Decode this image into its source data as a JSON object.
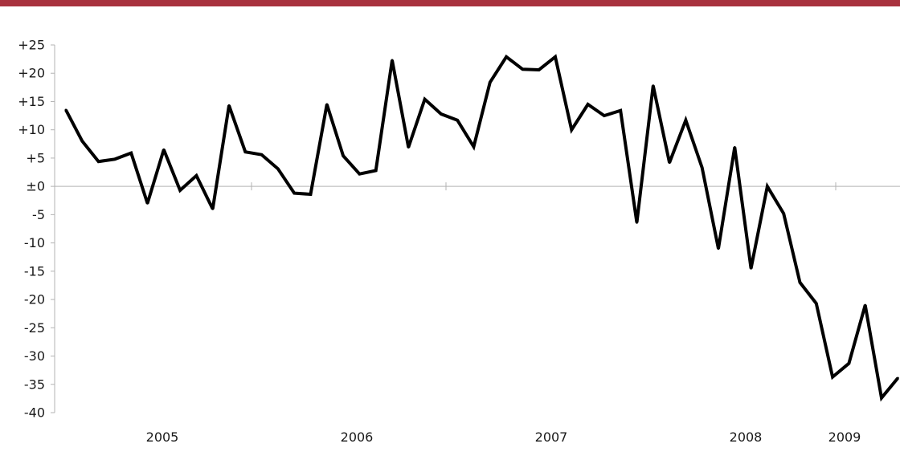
{
  "colors": {
    "top_bar": "#a8323e",
    "line": "#000000",
    "axis": "#b3b3b3"
  },
  "chart_data": {
    "type": "line",
    "title": "",
    "xlabel": "",
    "ylabel": "",
    "ylim": [
      -40,
      25
    ],
    "grid": false,
    "legend": "none",
    "y_ticks": [
      25,
      20,
      15,
      10,
      5,
      0,
      -5,
      -10,
      -15,
      -20,
      -25,
      -30,
      -35,
      -40
    ],
    "y_tick_labels": [
      "+25",
      "+20",
      "+15",
      "+10",
      "+5",
      "±0",
      "-5",
      "-10",
      "-15",
      "-20",
      "-25",
      "-30",
      "-35",
      "-40"
    ],
    "x_tick_labels": [
      "2005",
      "2006",
      "2007",
      "2008",
      "2009"
    ],
    "values": [
      13.5,
      8.0,
      4.4,
      4.8,
      5.9,
      -3.0,
      6.5,
      -0.7,
      1.9,
      -4.0,
      14.3,
      6.1,
      5.6,
      3.1,
      -1.2,
      -1.4,
      14.5,
      5.4,
      2.2,
      2.8,
      22.3,
      6.9,
      15.4,
      12.8,
      11.7,
      7.0,
      18.4,
      22.9,
      20.7,
      20.6,
      22.9,
      10.0,
      14.5,
      12.5,
      13.4,
      -6.4,
      17.8,
      4.2,
      11.7,
      3.3,
      -11.0,
      6.9,
      -14.5,
      0.0,
      -4.8,
      -17.0,
      -20.7,
      -33.7,
      -31.3,
      -21.0,
      -37.4,
      -33.9
    ]
  }
}
